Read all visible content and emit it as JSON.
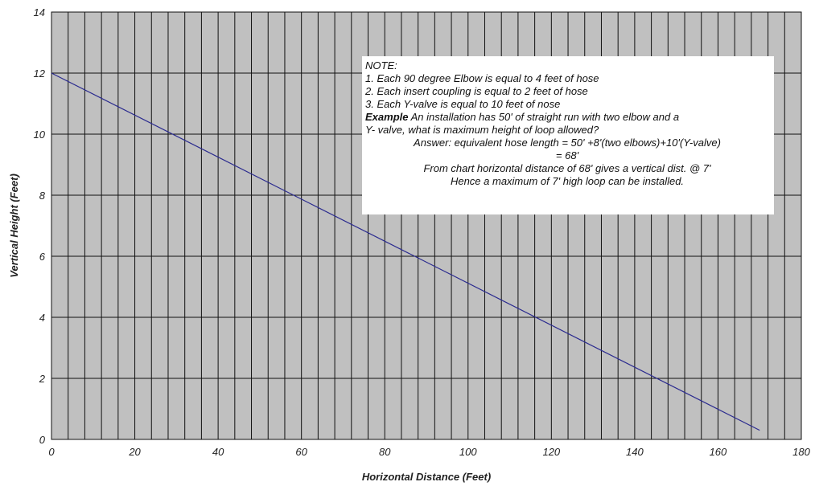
{
  "chart_data": {
    "type": "line",
    "title": "",
    "xlabel": "Horizontal Distance (Feet)",
    "ylabel": "Vertical Height (Feet)",
    "xlim": [
      0,
      180
    ],
    "ylim": [
      0,
      14
    ],
    "xticks": [
      0,
      20,
      40,
      60,
      80,
      100,
      120,
      140,
      160,
      180
    ],
    "yticks": [
      0,
      2,
      4,
      6,
      8,
      10,
      12,
      14
    ],
    "x_minor_grid_step": 4,
    "y_grid_step": 2,
    "grid": true,
    "plot_background": "#c0c0c0",
    "series": [
      {
        "color": "#2b2b8f",
        "x": [
          0,
          170
        ],
        "y": [
          12,
          0.3
        ]
      }
    ]
  },
  "note": {
    "title": "NOTE:",
    "item1": "1. Each 90 degree Elbow is equal to 4 feet of hose",
    "item2": "2. Each insert coupling is equal to 2 feet of hose",
    "item3": "3. Each Y-valve is equal to 10 feet of nose",
    "example_label": "Example",
    "example_text": " An installation has 50' of straight run with two elbow and a",
    "example_text2": "Y- valve, what is maximum height of loop allowed?",
    "answer1": "Answer: equivalent hose length = 50' +8'(two elbows)+10'(Y-valve)",
    "answer2": "= 68'",
    "answer3": "From chart horizontal distance of 68' gives a vertical dist. @ 7'",
    "answer4": "Hence a maximum of 7' high loop can be installed."
  }
}
